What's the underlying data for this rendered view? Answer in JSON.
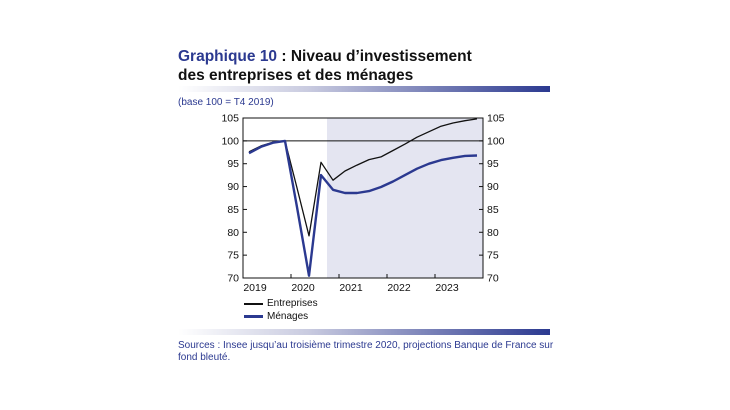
{
  "header": {
    "title_prefix": "Graphique 10",
    "title_rest": " : Niveau d’investissement",
    "title_line2": "des entreprises et des ménages",
    "unit_note": "(base 100 = T4 2019)"
  },
  "footer": {
    "sources": "Sources : Insee jusqu’au troisième trimestre 2020, projections Banque de France sur fond bleuté."
  },
  "colors": {
    "entreprises": "#111111",
    "menages": "#2b3990",
    "projection_shade": "#e4e5f1",
    "title_accent": "#2b3990"
  },
  "chart_data": {
    "type": "line",
    "x_tick_labels": [
      "2019",
      "2020",
      "2021",
      "2022",
      "2023"
    ],
    "x": [
      "2019T1",
      "2019T2",
      "2019T3",
      "2019T4",
      "2020T1",
      "2020T2",
      "2020T3",
      "2020T4",
      "2021T1",
      "2021T2",
      "2021T3",
      "2021T4",
      "2022T1",
      "2022T2",
      "2022T3",
      "2022T4",
      "2023T1",
      "2023T2",
      "2023T3",
      "2023T4"
    ],
    "series": [
      {
        "name": "Entreprises",
        "color": "#111111",
        "values": [
          97.6,
          98.9,
          99.7,
          100.0,
          89.7,
          79.2,
          95.3,
          91.4,
          93.4,
          94.7,
          95.9,
          96.5,
          97.9,
          99.3,
          100.8,
          102.0,
          103.2,
          103.9,
          104.4,
          104.8
        ]
      },
      {
        "name": "Ménages",
        "color": "#2b3990",
        "values": [
          97.3,
          98.7,
          99.6,
          100.0,
          85.5,
          70.5,
          92.5,
          89.3,
          88.6,
          88.6,
          89.0,
          89.9,
          91.1,
          92.5,
          93.9,
          95.0,
          95.8,
          96.3,
          96.7,
          96.8
        ]
      }
    ],
    "ylim": [
      70,
      105
    ],
    "y_ticks": [
      70,
      75,
      80,
      85,
      90,
      95,
      100,
      105
    ],
    "reference_line": 100,
    "projection_shaded_from": "2020T4",
    "legend_position": "bottom-left",
    "grid": false
  }
}
